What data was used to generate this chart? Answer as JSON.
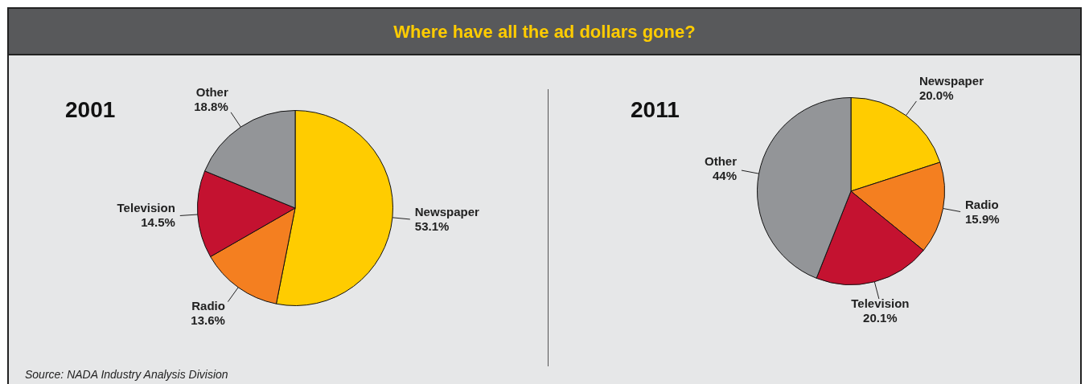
{
  "chart_data": [
    {
      "type": "pie",
      "title": "2001",
      "categories": [
        "Newspaper",
        "Radio",
        "Television",
        "Other"
      ],
      "values": [
        53.1,
        13.6,
        14.5,
        18.8
      ],
      "value_labels": [
        "53.1%",
        "13.6%",
        "14.5%",
        "18.8%"
      ],
      "colors": [
        "#ffcc00",
        "#f47f20",
        "#c41230",
        "#939598"
      ],
      "legend": false,
      "annotations": [
        "Where have all the ad dollars gone?",
        "Source: NADA Industry Analysis Division"
      ]
    },
    {
      "type": "pie",
      "title": "2011",
      "categories": [
        "Newspaper",
        "Radio",
        "Television",
        "Other"
      ],
      "values": [
        20.0,
        15.9,
        20.1,
        44
      ],
      "value_labels": [
        "20.0%",
        "15.9%",
        "20.1%",
        "44%"
      ],
      "colors": [
        "#ffcc00",
        "#f47f20",
        "#c41230",
        "#939598"
      ],
      "legend": false
    }
  ]
}
